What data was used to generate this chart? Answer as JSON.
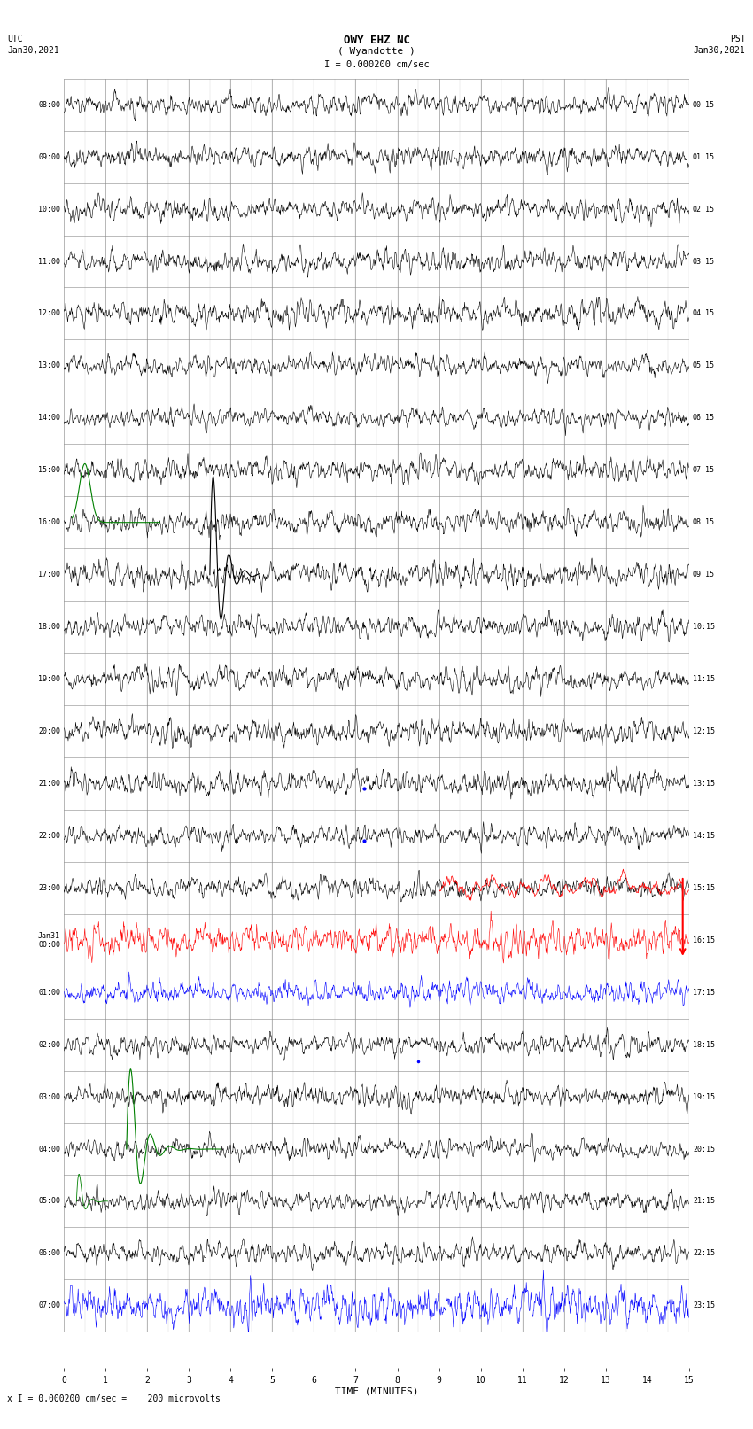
{
  "title_line1": "OWY EHZ NC",
  "title_line2": "( Wyandotte )",
  "title_line3": "I = 0.000200 cm/sec",
  "left_label_top": "UTC",
  "left_label_date": "Jan30,2021",
  "right_label_top": "PST",
  "right_label_date": "Jan30,2021",
  "xlabel": "TIME (MINUTES)",
  "bottom_note": "x I = 0.000200 cm/sec =    200 microvolts",
  "num_rows": 24,
  "bg_color": "#ffffff",
  "grid_color": "#888888",
  "left_times_utc": [
    "08:00",
    "09:00",
    "10:00",
    "11:00",
    "12:00",
    "13:00",
    "14:00",
    "15:00",
    "16:00",
    "17:00",
    "18:00",
    "19:00",
    "20:00",
    "21:00",
    "22:00",
    "23:00",
    "Jan31\n00:00",
    "01:00",
    "02:00",
    "03:00",
    "04:00",
    "05:00",
    "06:00",
    "07:00"
  ],
  "right_times_pst": [
    "00:15",
    "01:15",
    "02:15",
    "03:15",
    "04:15",
    "05:15",
    "06:15",
    "07:15",
    "08:15",
    "09:15",
    "10:15",
    "11:15",
    "12:15",
    "13:15",
    "14:15",
    "15:15",
    "16:15",
    "17:15",
    "18:15",
    "19:15",
    "20:15",
    "21:15",
    "22:15",
    "23:15"
  ],
  "seed": 42
}
